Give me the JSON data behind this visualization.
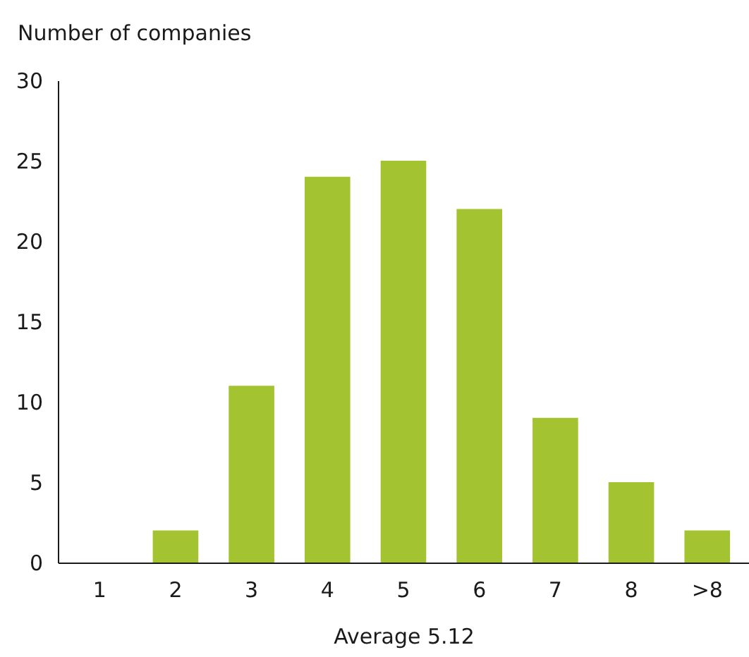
{
  "chart_data": {
    "type": "bar",
    "ylabel": "Number of companies",
    "xlabel": "Average 5.12",
    "categories": [
      "1",
      "2",
      "3",
      "4",
      "5",
      "6",
      "7",
      "8",
      ">8"
    ],
    "values": [
      0,
      2,
      11,
      24,
      25,
      22,
      9,
      5,
      2
    ],
    "color": "#a4c330",
    "ylim": [
      0,
      30
    ],
    "yticks": [
      0,
      5,
      10,
      15,
      20,
      25,
      30
    ],
    "grid": false
  }
}
